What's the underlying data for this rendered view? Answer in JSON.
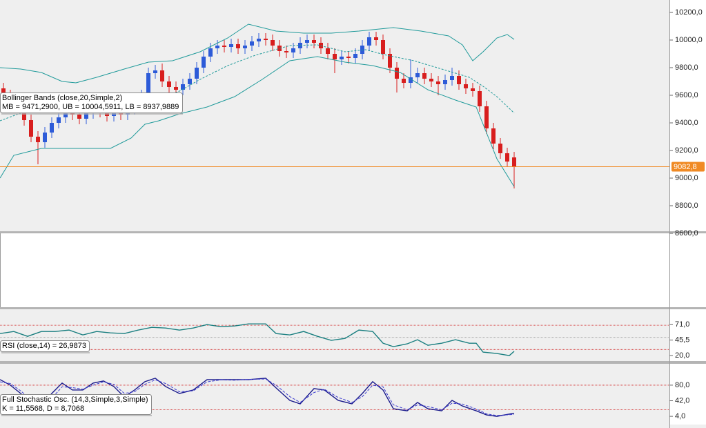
{
  "chart_data": [
    {
      "type": "candlestick",
      "xlim": [
        -0.5,
        96.5
      ],
      "ylim": [
        8615,
        10290
      ],
      "yticks": [
        {
          "value": 10200,
          "label": "10200,0"
        },
        {
          "value": 10000,
          "label": "10000,0"
        },
        {
          "value": 9800,
          "label": "9800,0"
        },
        {
          "value": 9600,
          "label": "9600,0"
        },
        {
          "value": 9400,
          "label": "9400,0"
        },
        {
          "value": 9200,
          "label": "9200,0"
        },
        {
          "value": 9000,
          "label": "9000,0"
        },
        {
          "value": 8800,
          "label": "8800,0"
        },
        {
          "value": 8600,
          "label": "8600,0"
        }
      ],
      "up_color": "#2d5bd8",
      "down_color": "#d81e1e",
      "open": [
        9650,
        9600,
        9560,
        9520,
        9420,
        9300,
        9260,
        9330,
        9400,
        9440,
        9480,
        9460,
        9430,
        9470,
        9500,
        9480,
        9450,
        9480,
        9460,
        9500,
        9530,
        9600,
        9760,
        9780,
        9700,
        9660,
        9640,
        9680,
        9720,
        9800,
        9880,
        9940,
        9960,
        9950,
        9970,
        9940,
        9960,
        9990,
        10010,
        10000,
        9960,
        9920,
        9910,
        9940,
        9980,
        10000,
        9980,
        9940,
        9900,
        9860,
        9880,
        9870,
        9900,
        9960,
        10020,
        10000,
        9900,
        9800,
        9720,
        9690,
        9730,
        9760,
        9720,
        9700,
        9680,
        9710,
        9740,
        9680,
        9650,
        9630,
        9520,
        9360,
        9250,
        9180,
        9150
      ],
      "high": [
        9690,
        9640,
        9600,
        9560,
        9460,
        9340,
        9370,
        9440,
        9480,
        9520,
        9520,
        9500,
        9510,
        9540,
        9540,
        9520,
        9520,
        9520,
        9540,
        9570,
        9640,
        9800,
        9820,
        9830,
        9740,
        9700,
        9720,
        9760,
        9840,
        9920,
        9980,
        10000,
        10000,
        10010,
        10010,
        10000,
        10030,
        10050,
        10050,
        10040,
        10000,
        9960,
        9980,
        10020,
        10040,
        10040,
        10020,
        9980,
        9940,
        9920,
        9920,
        9940,
        10000,
        10060,
        10060,
        10040,
        9940,
        9840,
        9760,
        9860,
        9800,
        9800,
        9760,
        9740,
        9750,
        9800,
        9780,
        9720,
        9690,
        9670,
        9560,
        9400,
        9290,
        9220,
        9190
      ],
      "low": [
        9560,
        9520,
        9480,
        9380,
        9260,
        9100,
        9220,
        9290,
        9360,
        9400,
        9420,
        9390,
        9390,
        9430,
        9440,
        9410,
        9410,
        9420,
        9420,
        9460,
        9490,
        9560,
        9720,
        9660,
        9620,
        9600,
        9600,
        9640,
        9680,
        9760,
        9840,
        9900,
        9910,
        9910,
        9900,
        9900,
        9920,
        9950,
        9960,
        9920,
        9880,
        9870,
        9870,
        9900,
        9940,
        9940,
        9900,
        9860,
        9760,
        9820,
        9830,
        9830,
        9860,
        9920,
        9960,
        9860,
        9760,
        9620,
        9650,
        9650,
        9690,
        9680,
        9660,
        9600,
        9640,
        9670,
        9640,
        9610,
        9590,
        9480,
        9320,
        9210,
        9140,
        9080,
        8925
      ],
      "close": [
        9600,
        9560,
        9520,
        9420,
        9300,
        9260,
        9330,
        9400,
        9440,
        9480,
        9460,
        9430,
        9470,
        9500,
        9480,
        9450,
        9480,
        9460,
        9500,
        9530,
        9600,
        9760,
        9780,
        9700,
        9660,
        9640,
        9680,
        9720,
        9800,
        9880,
        9940,
        9960,
        9950,
        9970,
        9940,
        9960,
        9990,
        10010,
        10000,
        9960,
        9920,
        9910,
        9940,
        9980,
        10000,
        9980,
        9940,
        9900,
        9860,
        9880,
        9870,
        9900,
        9960,
        10020,
        10000,
        9900,
        9800,
        9720,
        9690,
        9730,
        9760,
        9720,
        9700,
        9680,
        9710,
        9740,
        9680,
        9650,
        9630,
        9520,
        9360,
        9250,
        9180,
        9120,
        9082.8
      ],
      "overlays": [
        {
          "color": "#1f9a9a",
          "dash": false,
          "x": [
            -0.5,
            2.5,
            5.5,
            8.5,
            10.5,
            13.5,
            17.5,
            21,
            24.5,
            28.5,
            32.5,
            35.5,
            39.5,
            43.5,
            47.5,
            51.5,
            56.5,
            60.5,
            64.5,
            66.5,
            68,
            69.5,
            71.5,
            73,
            74
          ],
          "values": [
            9800,
            9790,
            9765,
            9700,
            9690,
            9730,
            9790,
            9840,
            9850,
            9915,
            10015,
            10115,
            10065,
            10050,
            10050,
            10065,
            10090,
            10065,
            10030,
            9965,
            9850,
            9915,
            10015,
            10040,
            10004.5911
          ]
        },
        {
          "color": "#1f9a9a",
          "dash": true,
          "x": [
            -0.5,
            3.5,
            21,
            25.5,
            28.5,
            32.5,
            36.5,
            41.5,
            45.5,
            49.5,
            52.5,
            55.5,
            59.5,
            63.5,
            67.5,
            69.5,
            71.5,
            74
          ],
          "values": [
            9415,
            9490,
            9540,
            9630,
            9715,
            9815,
            9890,
            9960,
            9965,
            9915,
            9930,
            9890,
            9850,
            9790,
            9730,
            9665,
            9590,
            9471.29
          ]
        },
        {
          "color": "#1f9a9a",
          "dash": false,
          "x": [
            -0.5,
            1.5,
            5.5,
            11.5,
            15.5,
            18.5,
            20.5,
            22.5,
            25.5,
            29.5,
            33.5,
            37.5,
            41.5,
            45.5,
            49.5,
            53.5,
            57.5,
            61.5,
            65.5,
            68.5,
            71.5,
            74
          ],
          "values": [
            9000,
            9165,
            9215,
            9215,
            9215,
            9290,
            9390,
            9415,
            9465,
            9515,
            9590,
            9715,
            9850,
            9880,
            9840,
            9815,
            9765,
            9640,
            9565,
            9515,
            9140,
            8937.9889
          ]
        }
      ],
      "last_price": {
        "value": 9082.8,
        "label": "9082,8",
        "color": "#f08a24"
      },
      "legend_lines": [
        "Bollinger Bands (close,20,Simple,2)",
        "MB = 9471,2900, UB = 10004,5911, LB = 8937,9889"
      ]
    },
    {
      "type": "line",
      "xlim": [
        -0.5,
        96.5
      ],
      "ylim": [
        11,
        94
      ],
      "yticks": [
        {
          "value": 71,
          "label": "71,0"
        },
        {
          "value": 45.5,
          "label": "45,5"
        },
        {
          "value": 20,
          "label": "20,0"
        }
      ],
      "reference_lines": [
        {
          "value": 70,
          "color": "#d02020"
        },
        {
          "value": 50,
          "color": "#9a9a9a"
        },
        {
          "value": 30,
          "color": "#d02020"
        }
      ],
      "series": [
        {
          "color": "#1a7f80",
          "dash": false,
          "x": [
            -0.5,
            1.5,
            3.5,
            5.5,
            7.5,
            9.5,
            11.5,
            13.5,
            15.5,
            17.5,
            19.5,
            21.5,
            23.5,
            25.5,
            27.5,
            29.5,
            31.5,
            33.5,
            35.5,
            38,
            39.5,
            41.5,
            43.5,
            45.5,
            47.5,
            49.5,
            51.5,
            53.5,
            55,
            56.5,
            58.5,
            60,
            61.5,
            63.5,
            65.5,
            67.5,
            68.5,
            69.5,
            71.5,
            73.3,
            74
          ],
          "values": [
            56.3,
            59.7,
            51.7,
            59.7,
            59.7,
            62,
            54,
            59.7,
            57.4,
            56.3,
            62,
            66.5,
            65.4,
            62,
            65.4,
            71,
            67.6,
            68.8,
            72.2,
            72.2,
            56.3,
            54,
            59.7,
            51.7,
            45,
            48.3,
            62,
            59.7,
            40.4,
            34.7,
            39.3,
            46.1,
            37,
            40.4,
            46.1,
            40.4,
            40.4,
            25.7,
            23.4,
            20,
            26.9873
          ]
        }
      ],
      "legend_lines": [
        "RSI (close,14) = 26,9873"
      ]
    },
    {
      "type": "line",
      "xlim": [
        -0.5,
        96.5
      ],
      "ylim": [
        -16,
        132
      ],
      "yticks": [
        {
          "value": 80,
          "label": "80,0"
        },
        {
          "value": 42,
          "label": "42,0"
        },
        {
          "value": 4,
          "label": "4,0"
        }
      ],
      "reference_lines": [
        {
          "value": 80,
          "color": "#d02020"
        },
        {
          "value": 20,
          "color": "#d02020"
        }
      ],
      "series": [
        {
          "color": "#1a1a8c",
          "dash": false,
          "x": [
            -0.5,
            1,
            2.5,
            4,
            5.5,
            7,
            8.5,
            10,
            11.5,
            13,
            14.5,
            16,
            17.5,
            19,
            20.5,
            22,
            23.5,
            25.5,
            27.5,
            29.5,
            31.5,
            33.5,
            35.5,
            38,
            39.5,
            41.5,
            43,
            45,
            46.5,
            48.5,
            50.5,
            52,
            53.5,
            55,
            56.5,
            58.5,
            60,
            61.5,
            63.5,
            65,
            66.5,
            68.5,
            70,
            71.5,
            74
          ],
          "values": [
            93.5,
            80,
            59.7,
            34.4,
            26,
            59.7,
            85.1,
            68.2,
            68.2,
            85.1,
            90.1,
            76.6,
            51.3,
            68.2,
            88.5,
            96.9,
            76.6,
            59.7,
            68.2,
            93.5,
            93.5,
            93.5,
            93.5,
            96.9,
            73.3,
            42.9,
            34.4,
            71.6,
            68.2,
            42.9,
            34.4,
            59.7,
            88.5,
            68.2,
            22.6,
            17.5,
            37.8,
            22.6,
            17.5,
            42.9,
            29.3,
            17.5,
            7.4,
            4,
            11.5568
          ]
        },
        {
          "color": "#3a3ad0",
          "dash": true,
          "x": [
            -0.5,
            1,
            2.5,
            4,
            5.5,
            7,
            8.5,
            10,
            11.5,
            13,
            14.5,
            16,
            17.5,
            19,
            20.5,
            22,
            23.5,
            25.5,
            27.5,
            29.5,
            31.5,
            33.5,
            35.5,
            38,
            39.5,
            41.5,
            43,
            45,
            46.5,
            48.5,
            50.5,
            52,
            53.5,
            55,
            56.5,
            58.5,
            60,
            61.5,
            63.5,
            65,
            66.5,
            68.5,
            70,
            71.5,
            74
          ],
          "values": [
            88,
            84,
            66,
            45,
            32,
            48,
            76,
            74,
            70,
            80,
            88,
            82,
            60,
            64,
            82,
            93,
            84,
            64,
            66,
            88,
            93,
            92,
            94,
            95,
            80,
            52,
            38,
            62,
            70,
            50,
            38,
            52,
            80,
            76,
            32,
            20,
            32,
            28,
            20,
            36,
            34,
            22,
            10,
            6,
            8.7068
          ]
        }
      ],
      "legend_lines": [
        "Full Stochastic Osc. (14,3,Simple,3,Simple)",
        "K = 11,5568, D = 8,7068"
      ]
    }
  ]
}
